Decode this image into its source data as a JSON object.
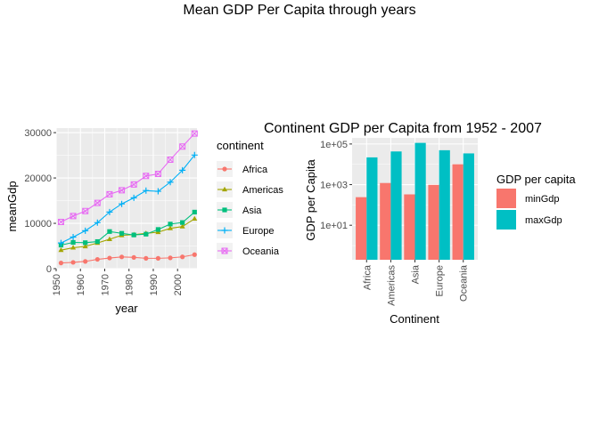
{
  "page_title": "Mean GDP Per Capita through years",
  "colors": {
    "Africa": "#F8766D",
    "Americas": "#A3A500",
    "Asia": "#00BF7D",
    "Europe": "#00B0F6",
    "Oceania": "#E76BF3",
    "minGdp": "#F8766D",
    "maxGdp": "#00BFC4",
    "panel_bg": "#EBEBEB",
    "grid": "#FFFFFF"
  },
  "chart_data": [
    {
      "type": "line",
      "title": "",
      "xlabel": "year",
      "ylabel": "meanGdp",
      "xlim": [
        1950,
        2008
      ],
      "ylim": [
        0,
        31000
      ],
      "xticks": [
        1950,
        1960,
        1970,
        1980,
        1990,
        2000
      ],
      "yticks": [
        0,
        10000,
        20000,
        30000
      ],
      "grid": true,
      "legend": {
        "title": "continent",
        "position": "right"
      },
      "x": [
        1952,
        1957,
        1962,
        1967,
        1972,
        1977,
        1982,
        1987,
        1992,
        1997,
        2002,
        2007
      ],
      "series": [
        {
          "name": "Africa",
          "marker": "circle",
          "values": [
            1253,
            1385,
            1598,
            2050,
            2340,
            2586,
            2482,
            2283,
            2282,
            2379,
            2599,
            3089
          ]
        },
        {
          "name": "Americas",
          "marker": "triangle",
          "values": [
            4079,
            4616,
            4902,
            5668,
            6491,
            7352,
            7507,
            7794,
            8045,
            8890,
            9288,
            11003
          ]
        },
        {
          "name": "Asia",
          "marker": "square",
          "values": [
            5195,
            5788,
            5729,
            5971,
            8187,
            7791,
            7434,
            7608,
            8640,
            9834,
            10174,
            12473
          ]
        },
        {
          "name": "Europe",
          "marker": "plus",
          "values": [
            5661,
            6963,
            8365,
            10144,
            12480,
            14284,
            15618,
            17214,
            17062,
            19077,
            21712,
            25055
          ]
        },
        {
          "name": "Oceania",
          "marker": "boxx",
          "values": [
            10298,
            11599,
            12696,
            14495,
            16417,
            17284,
            18555,
            20448,
            20894,
            24024,
            26939,
            29810
          ]
        }
      ]
    },
    {
      "type": "bar",
      "title": "Continent GDP per Capita from 1952 - 2007",
      "xlabel": "Continent",
      "ylabel": "GDP per Capita",
      "yscale": "log10",
      "ylim": [
        0.2,
        200000
      ],
      "yticks": [
        10,
        1000,
        100000
      ],
      "ytick_labels": [
        "1e+01",
        "1e+03",
        "1e+05"
      ],
      "grid": true,
      "legend": {
        "title": "GDP per capita",
        "position": "right"
      },
      "categories": [
        "Africa",
        "Americas",
        "Asia",
        "Europe",
        "Oceania"
      ],
      "series": [
        {
          "name": "minGdp",
          "values": [
            241,
            1202,
            331,
            974,
            10040
          ]
        },
        {
          "name": "maxGdp",
          "values": [
            21951,
            42952,
            113523,
            49357,
            34435
          ]
        }
      ]
    }
  ]
}
